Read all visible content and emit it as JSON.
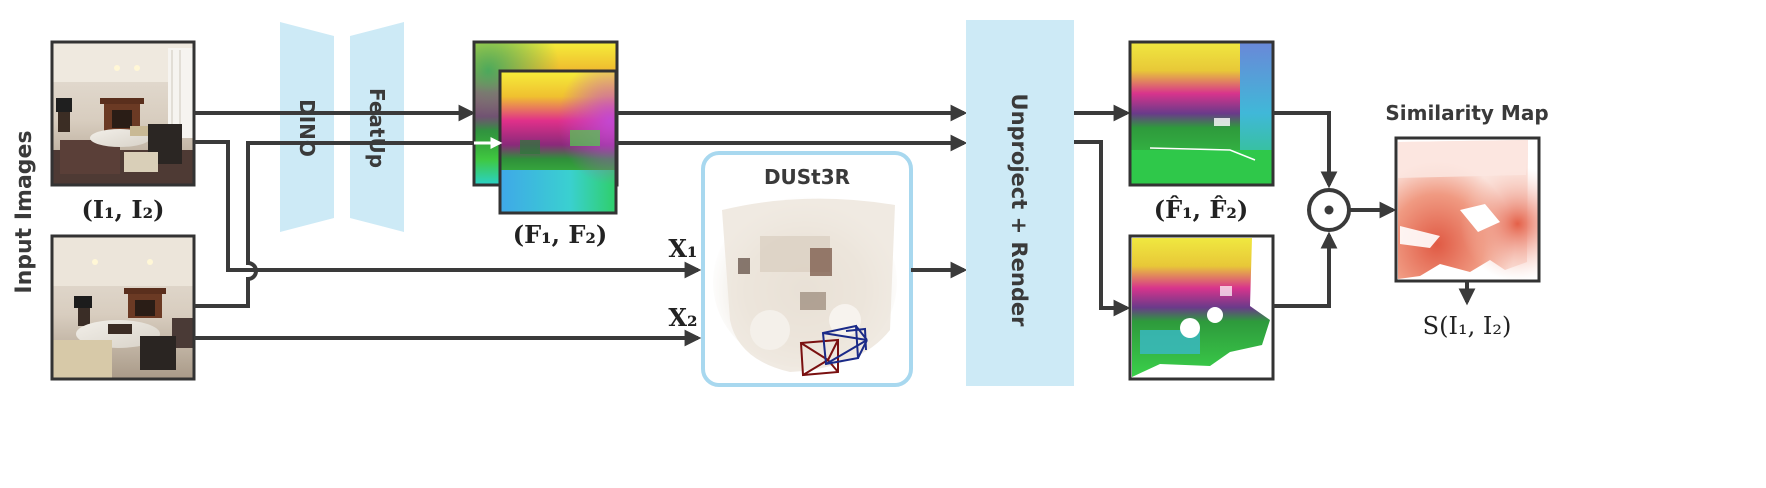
{
  "side_label": "Input Images",
  "inputs_caption": "(I₁, I₂)",
  "encoders": {
    "dino": "DINO",
    "featup": "FeatUp"
  },
  "features_caption": "(F₁, F₂)",
  "dust3r": {
    "title": "DUSt3R",
    "x1": "X₁",
    "x2": "X₂"
  },
  "unproject_render": "Unproject + Render",
  "rendered_caption": "(F̂₁, F̂₂)",
  "combine_op_symbol": "⊙",
  "similarity": {
    "title": "Similarity Map",
    "caption": "S(I₁, I₂)"
  },
  "colors": {
    "block_fill": "#cdeaf6",
    "dust3r_border": "#a8d8ef",
    "arrow": "#3a3a3a",
    "frame": "#333333",
    "heat": "#d9543f"
  },
  "icons": {
    "combine": "circled-dot-icon",
    "pointcloud": "point-cloud-icon",
    "camera": "camera-frustum-icon"
  }
}
